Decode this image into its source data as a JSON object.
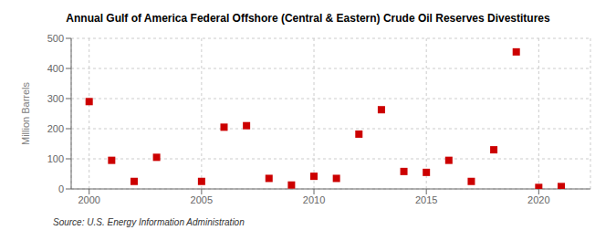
{
  "chart_data": {
    "type": "scatter",
    "title": "Annual Gulf of America Federal Offshore (Central & Eastern) Crude Oil Reserves Divestitures",
    "ylabel": "Million Barrels",
    "source": "Source: U.S. Energy Information Administration",
    "x": [
      2000,
      2001,
      2002,
      2003,
      2005,
      2006,
      2007,
      2008,
      2009,
      2010,
      2011,
      2012,
      2013,
      2014,
      2015,
      2016,
      2017,
      2018,
      2019,
      2020,
      2021
    ],
    "values": [
      290,
      95,
      25,
      105,
      25,
      205,
      210,
      35,
      13,
      42,
      35,
      182,
      263,
      58,
      55,
      95,
      25,
      130,
      455,
      5,
      8
    ],
    "color": "#cc0000",
    "marker": "square",
    "xlim": [
      1999.2,
      2022.3
    ],
    "ylim": [
      0,
      500
    ],
    "xticks": [
      2000,
      2005,
      2010,
      2015,
      2020
    ],
    "yticks": [
      0,
      100,
      200,
      300,
      400,
      500
    ],
    "grid": true
  }
}
